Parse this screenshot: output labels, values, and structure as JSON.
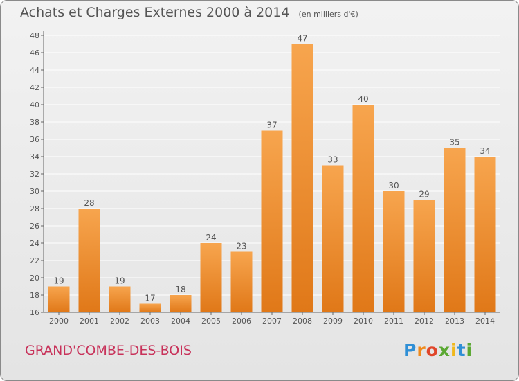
{
  "chart_data": {
    "type": "bar",
    "title": "Achats et Charges Externes 2000 à 2014",
    "subtitle": "(en milliers d'€)",
    "categories": [
      "2000",
      "2001",
      "2002",
      "2003",
      "2004",
      "2005",
      "2006",
      "2007",
      "2008",
      "2009",
      "2010",
      "2011",
      "2012",
      "2013",
      "2014"
    ],
    "values": [
      19,
      28,
      19,
      17,
      18,
      24,
      23,
      37,
      47,
      33,
      40,
      30,
      29,
      35,
      34
    ],
    "ylim": [
      16,
      48
    ],
    "yticks": [
      16,
      18,
      20,
      22,
      24,
      26,
      28,
      30,
      32,
      34,
      36,
      38,
      40,
      42,
      44,
      46,
      48
    ],
    "xlabel": "",
    "ylabel": "",
    "grid": true,
    "colors": {
      "bar_light": "#f7a54e",
      "bar_dark": "#e07818",
      "text": "#555555",
      "grid": "#ffffff"
    }
  },
  "footer": {
    "municipality": "GRAND'COMBE-DES-BOIS",
    "brand_letters": [
      {
        "ch": "P",
        "color": "#2f8fd6"
      },
      {
        "ch": "r",
        "color": "#f08a1c"
      },
      {
        "ch": "o",
        "color": "#e0462a"
      },
      {
        "ch": "x",
        "color": "#5aa832"
      },
      {
        "ch": "i",
        "color": "#f0b81c"
      },
      {
        "ch": "t",
        "color": "#2f8fd6"
      },
      {
        "ch": "i",
        "color": "#5aa832"
      }
    ]
  }
}
